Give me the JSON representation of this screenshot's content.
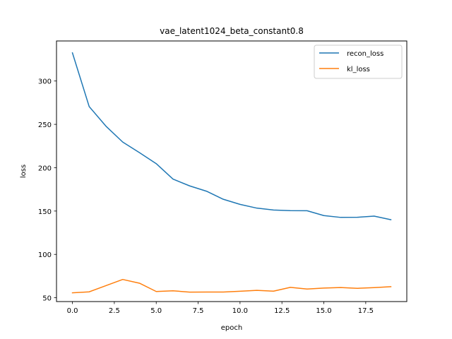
{
  "chart_data": {
    "type": "line",
    "title": "vae_latent1024_beta_constant0.8",
    "xlabel": "epoch",
    "ylabel": "loss",
    "xlim": [
      -0.95,
      19.95
    ],
    "ylim": [
      45.6,
      346.2
    ],
    "x_ticks": [
      0.0,
      2.5,
      5.0,
      7.5,
      10.0,
      12.5,
      15.0,
      17.5
    ],
    "x_tick_labels": [
      "0.0",
      "2.5",
      "5.0",
      "7.5",
      "10.0",
      "12.5",
      "15.0",
      "17.5"
    ],
    "y_ticks": [
      50,
      100,
      150,
      200,
      250,
      300
    ],
    "y_tick_labels": [
      "50",
      "100",
      "150",
      "200",
      "250",
      "300"
    ],
    "grid": false,
    "legend_position": "top-right",
    "x": [
      0,
      1,
      2,
      3,
      4,
      5,
      6,
      7,
      8,
      9,
      10,
      11,
      12,
      13,
      14,
      15,
      16,
      17,
      18,
      19
    ],
    "series": [
      {
        "name": "recon_loss",
        "color": "#1f77b4",
        "values": [
          332.5,
          270.5,
          247.9,
          229.6,
          217.4,
          204.7,
          186.9,
          179.0,
          172.9,
          163.6,
          157.7,
          153.4,
          151.2,
          150.5,
          150.4,
          144.8,
          142.7,
          142.8,
          144.2,
          140.0
        ]
      },
      {
        "name": "kl_loss",
        "color": "#ff7f0e",
        "values": [
          55.7,
          56.8,
          64.0,
          71.1,
          66.8,
          57.2,
          58.0,
          56.5,
          56.6,
          56.6,
          57.5,
          58.5,
          57.6,
          62.0,
          60.1,
          61.2,
          61.8,
          60.9,
          61.7,
          62.8
        ]
      }
    ]
  }
}
